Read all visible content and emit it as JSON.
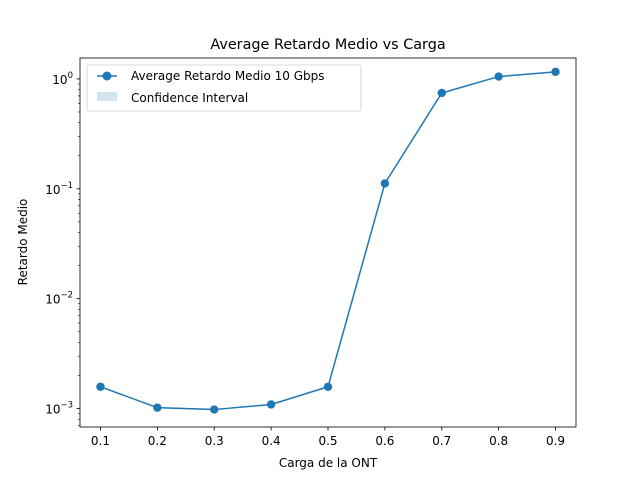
{
  "chart_data": {
    "type": "line",
    "title": "Average Retardo Medio vs Carga",
    "xlabel": "Carga de la ONT",
    "ylabel": "Retardo Medio",
    "yscale": "log",
    "xlim": [
      0.064,
      0.936
    ],
    "ylim": [
      0.00068,
      1.55
    ],
    "x_ticks": [
      0.1,
      0.2,
      0.3,
      0.4,
      0.5,
      0.6,
      0.7,
      0.8,
      0.9
    ],
    "x_tick_labels": [
      "0.1",
      "0.2",
      "0.3",
      "0.4",
      "0.5",
      "0.6",
      "0.7",
      "0.8",
      "0.9"
    ],
    "y_ticks": [
      {
        "exp": -3,
        "base": "10",
        "label_exp": "−3"
      },
      {
        "exp": -2,
        "base": "10",
        "label_exp": "−2"
      },
      {
        "exp": -1,
        "base": "10",
        "label_exp": "−1"
      },
      {
        "exp": 0,
        "base": "10",
        "label_exp": "0"
      }
    ],
    "grid": false,
    "legend_position": "top-left",
    "series": [
      {
        "name": "Average Retardo Medio 10 Gbps",
        "color": "#1f77b4",
        "marker": "circle",
        "x": [
          0.1,
          0.2,
          0.3,
          0.4,
          0.5,
          0.6,
          0.7,
          0.8,
          0.9
        ],
        "y": [
          0.00158,
          0.00102,
          0.00098,
          0.00109,
          0.00158,
          0.112,
          0.745,
          1.05,
          1.16
        ]
      }
    ],
    "confidence_interval": {
      "name": "Confidence Interval",
      "color": "#1f77b4",
      "opacity": 0.2
    }
  }
}
